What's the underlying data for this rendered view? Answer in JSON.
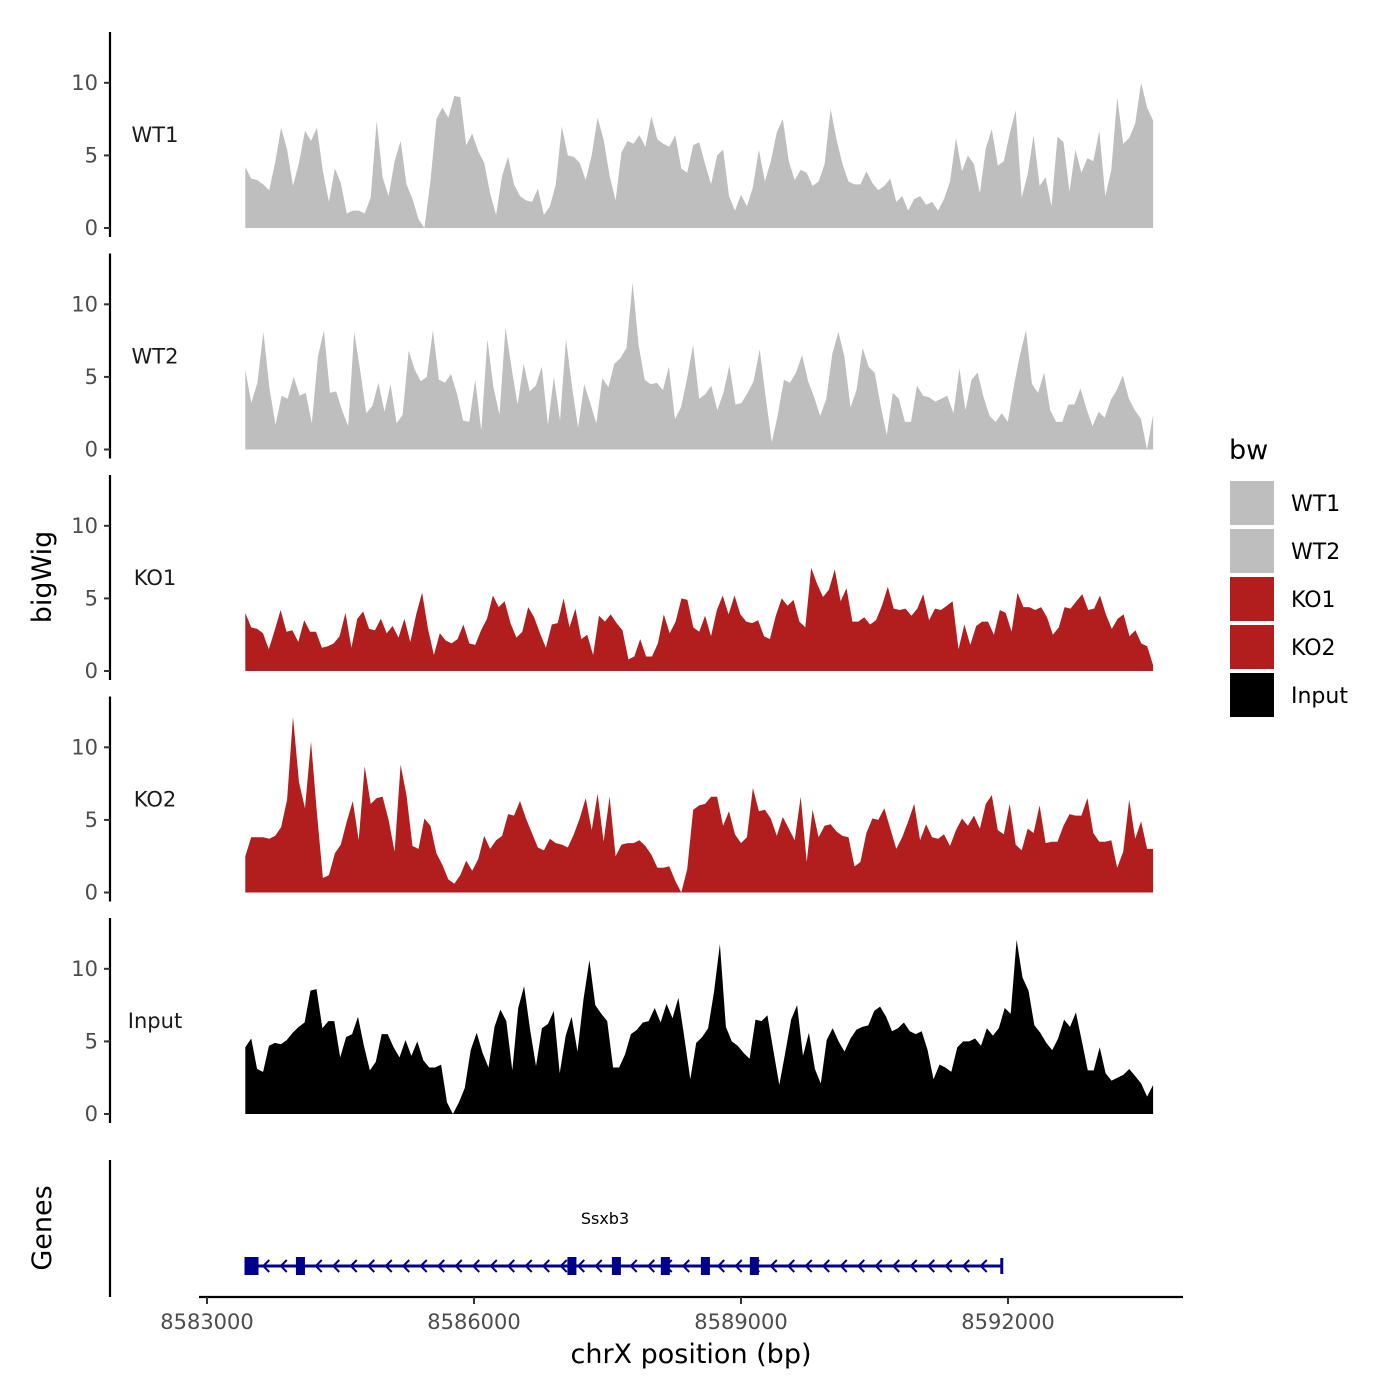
{
  "chart_data": {
    "type": "area",
    "genomic_range": [
      8583430,
      8593630
    ],
    "xlim": [
      8582900,
      8593950
    ],
    "ylim": [
      0,
      13.5
    ],
    "y_ticks": [
      0,
      5,
      10
    ],
    "y_tick_labels": [
      "0",
      "5",
      "10"
    ],
    "x_ticks": [
      8583000,
      8586000,
      8589000,
      8592000
    ],
    "x_tick_labels": [
      "8583000",
      "8586000",
      "8589000",
      "8592000"
    ],
    "xlabel": "chrX position (bp)",
    "ylabel": "bigWig",
    "genes_label": "Genes",
    "legend_title": "bw",
    "tracks": [
      {
        "name": "WT1",
        "color": "#bebebe",
        "values": [
          4.2,
          3.4,
          3.3,
          3.0,
          2.6,
          4.5,
          6.9,
          5.4,
          2.9,
          4.5,
          6.7,
          6.0,
          6.9,
          3.9,
          1.8,
          4.1,
          3.1,
          1.0,
          1.2,
          1.2,
          1.0,
          2.1,
          7.4,
          3.5,
          2.2,
          4.6,
          6.0,
          3.0,
          2.0,
          0.6,
          0.0,
          3.2,
          7.5,
          8.3,
          7.6,
          9.1,
          9.0,
          5.7,
          6.5,
          5.3,
          4.5,
          2.4,
          0.9,
          3.6,
          4.9,
          3.0,
          2.2,
          1.9,
          1.8,
          2.7,
          0.9,
          1.5,
          3.0,
          7.0,
          5.0,
          4.9,
          4.5,
          3.3,
          5.0,
          7.6,
          6.1,
          3.6,
          1.9,
          5.2,
          6.0,
          5.8,
          6.4,
          5.6,
          7.7,
          6.1,
          5.8,
          5.6,
          6.4,
          4.1,
          3.8,
          5.7,
          5.9,
          4.4,
          3.0,
          5.0,
          5.4,
          2.2,
          1.2,
          2.3,
          1.5,
          2.8,
          5.4,
          3.2,
          4.6,
          6.6,
          7.5,
          4.6,
          3.3,
          4.0,
          3.8,
          2.9,
          3.2,
          4.4,
          8.2,
          6.1,
          4.4,
          3.2,
          3.0,
          3.0,
          3.9,
          3.1,
          2.6,
          2.9,
          3.4,
          1.8,
          2.2,
          1.2,
          2.0,
          2.2,
          1.6,
          1.8,
          1.2,
          2.0,
          3.2,
          6.2,
          3.9,
          5.0,
          4.4,
          2.4,
          5.5,
          6.8,
          4.3,
          4.6,
          6.5,
          8.1,
          2.1,
          3.7,
          6.4,
          2.9,
          3.5,
          1.5,
          6.3,
          5.9,
          2.5,
          5.4,
          3.8,
          4.8,
          4.6,
          6.7,
          2.2,
          4.0,
          9.0,
          5.8,
          6.2,
          7.2,
          10.0,
          8.3,
          7.4
        ]
      },
      {
        "name": "WT2",
        "color": "#bebebe",
        "values": [
          5.5,
          3.2,
          4.6,
          8.1,
          4.2,
          1.7,
          3.7,
          3.5,
          5.0,
          3.7,
          3.9,
          1.8,
          6.4,
          8.2,
          3.9,
          4.0,
          2.7,
          1.6,
          8.1,
          5.4,
          2.5,
          3.0,
          4.6,
          2.6,
          4.5,
          1.8,
          2.4,
          6.8,
          5.5,
          4.7,
          5.0,
          8.2,
          4.8,
          4.6,
          5.2,
          3.8,
          2.0,
          1.9,
          4.8,
          1.3,
          7.6,
          4.3,
          2.4,
          8.4,
          5.6,
          3.1,
          5.9,
          4.0,
          4.4,
          5.7,
          1.7,
          5.0,
          2.0,
          7.6,
          4.3,
          1.5,
          4.5,
          3.2,
          1.8,
          4.9,
          4.3,
          5.9,
          6.3,
          7.0,
          11.5,
          7.2,
          4.8,
          4.5,
          4.6,
          4.1,
          5.7,
          2.1,
          2.9,
          4.9,
          7.2,
          3.5,
          3.8,
          4.4,
          2.7,
          3.9,
          5.8,
          3.1,
          3.2,
          3.9,
          4.7,
          6.9,
          3.6,
          0.5,
          2.4,
          4.8,
          4.6,
          5.3,
          6.5,
          4.7,
          3.6,
          2.3,
          3.5,
          6.6,
          8.1,
          6.4,
          2.9,
          4.1,
          7.0,
          5.7,
          5.3,
          3.0,
          1.0,
          3.9,
          3.5,
          1.9,
          1.9,
          4.4,
          3.7,
          3.6,
          3.3,
          3.5,
          3.7,
          2.5,
          5.6,
          2.7,
          4.8,
          5.3,
          3.6,
          2.3,
          1.9,
          2.5,
          1.9,
          4.4,
          6.5,
          8.2,
          4.5,
          3.9,
          5.3,
          2.7,
          1.9,
          1.9,
          3.1,
          3.1,
          4.2,
          2.8,
          1.6,
          2.6,
          2.2,
          3.4,
          4.1,
          5.1,
          3.5,
          2.7,
          2.1,
          0.0,
          2.4
        ]
      },
      {
        "name": "KO1",
        "color": "#b21e1e",
        "values": [
          4.0,
          3.0,
          2.9,
          2.6,
          1.5,
          2.8,
          4.2,
          2.7,
          2.8,
          2.0,
          3.5,
          2.7,
          2.7,
          1.6,
          1.7,
          1.9,
          2.4,
          4.0,
          1.6,
          3.6,
          4.1,
          2.9,
          2.8,
          3.6,
          2.6,
          3.1,
          2.3,
          3.6,
          2.0,
          3.9,
          5.4,
          2.9,
          1.1,
          2.6,
          2.1,
          1.9,
          2.2,
          3.2,
          1.9,
          1.8,
          2.8,
          3.6,
          5.2,
          4.4,
          4.8,
          3.3,
          2.3,
          2.7,
          4.4,
          3.7,
          2.6,
          1.6,
          3.2,
          3.3,
          5.0,
          3.0,
          4.3,
          2.2,
          2.5,
          1.1,
          3.8,
          3.4,
          3.9,
          3.3,
          2.8,
          0.8,
          1.0,
          2.2,
          1.0,
          1.0,
          1.9,
          3.9,
          2.6,
          3.4,
          5.0,
          4.9,
          3.0,
          2.7,
          3.8,
          2.4,
          4.2,
          5.2,
          3.9,
          5.2,
          3.9,
          3.4,
          3.3,
          3.5,
          2.4,
          2.2,
          3.8,
          5.0,
          4.5,
          4.9,
          3.4,
          3.0,
          7.1,
          6.0,
          5.1,
          5.6,
          7.0,
          4.8,
          5.7,
          3.4,
          3.4,
          3.7,
          3.2,
          3.5,
          4.5,
          5.8,
          4.3,
          4.2,
          4.3,
          3.8,
          4.3,
          5.3,
          3.5,
          4.3,
          4.2,
          4.5,
          4.8,
          1.5,
          3.2,
          1.8,
          3.1,
          3.4,
          3.4,
          2.5,
          4.2,
          4.0,
          2.7,
          5.4,
          4.4,
          4.4,
          4.2,
          4.4,
          3.7,
          2.5,
          3.0,
          4.4,
          4.3,
          4.8,
          5.3,
          4.2,
          4.3,
          5.2,
          3.9,
          2.9,
          3.6,
          3.9,
          2.4,
          2.8,
          1.9,
          1.7,
          0.4
        ]
      },
      {
        "name": "KO2",
        "color": "#b21e1e",
        "values": [
          2.5,
          3.8,
          3.8,
          3.8,
          3.7,
          3.9,
          4.5,
          6.4,
          12.1,
          7.6,
          5.8,
          10.4,
          5.5,
          1.0,
          1.2,
          2.7,
          3.3,
          4.9,
          6.3,
          3.6,
          8.7,
          6.1,
          6.5,
          6.6,
          5.0,
          2.8,
          8.8,
          6.7,
          3.2,
          3.0,
          5.1,
          4.6,
          2.7,
          1.9,
          0.9,
          0.6,
          1.2,
          2.2,
          1.5,
          2.3,
          3.9,
          3.0,
          3.6,
          3.9,
          5.4,
          5.3,
          6.3,
          5.1,
          4.1,
          3.1,
          2.9,
          3.7,
          3.4,
          3.3,
          3.1,
          4.0,
          5.1,
          6.5,
          4.3,
          6.8,
          3.5,
          6.6,
          2.5,
          3.3,
          3.4,
          3.4,
          3.6,
          3.2,
          2.6,
          1.7,
          1.7,
          1.8,
          0.8,
          0.0,
          1.6,
          5.7,
          6.0,
          6.1,
          6.6,
          6.6,
          4.6,
          5.6,
          4.0,
          3.4,
          3.8,
          7.2,
          5.6,
          5.7,
          5.1,
          3.9,
          5.2,
          4.4,
          3.6,
          6.6,
          2.1,
          5.7,
          3.8,
          4.6,
          4.7,
          4.2,
          3.9,
          3.8,
          1.8,
          2.1,
          4.1,
          5.1,
          5.0,
          5.8,
          4.4,
          3.0,
          3.8,
          4.9,
          6.1,
          3.6,
          4.7,
          3.8,
          3.7,
          4.0,
          3.2,
          4.3,
          5.1,
          4.6,
          5.3,
          4.4,
          6.1,
          6.7,
          4.3,
          4.0,
          6.1,
          3.3,
          2.9,
          4.4,
          4.1,
          6.0,
          3.4,
          3.5,
          3.5,
          4.6,
          5.4,
          5.3,
          5.3,
          6.5,
          4.1,
          3.5,
          3.5,
          3.6,
          1.7,
          2.8,
          6.4,
          3.7,
          4.9,
          3.0,
          3.0
        ]
      },
      {
        "name": "Input",
        "color": "#000000",
        "values": [
          4.6,
          5.2,
          3.1,
          2.9,
          4.7,
          4.9,
          4.8,
          5.1,
          5.6,
          6.0,
          6.3,
          8.5,
          8.6,
          5.9,
          6.4,
          6.4,
          3.9,
          5.3,
          5.5,
          6.7,
          4.7,
          3.0,
          3.6,
          5.5,
          5.5,
          4.6,
          3.9,
          5.1,
          4.0,
          5.0,
          3.7,
          3.2,
          3.2,
          3.4,
          0.8,
          0.0,
          0.8,
          1.8,
          4.4,
          5.6,
          4.2,
          3.2,
          6.0,
          7.2,
          6.4,
          3.0,
          7.3,
          8.8,
          5.8,
          3.3,
          5.9,
          6.2,
          7.1,
          2.8,
          5.4,
          6.7,
          4.3,
          7.9,
          10.6,
          7.5,
          6.9,
          6.4,
          3.2,
          3.2,
          4.1,
          5.5,
          5.8,
          6.3,
          6.4,
          7.3,
          6.3,
          7.6,
          6.6,
          8.0,
          5.3,
          2.4,
          4.9,
          5.3,
          5.9,
          8.4,
          11.7,
          6.0,
          5.0,
          4.7,
          4.2,
          3.8,
          6.5,
          6.4,
          6.8,
          4.4,
          2.0,
          4.2,
          6.5,
          7.5,
          4.0,
          5.6,
          3.1,
          2.1,
          5.1,
          5.9,
          5.0,
          4.3,
          5.2,
          5.8,
          6.0,
          6.1,
          7.1,
          7.4,
          6.7,
          5.7,
          5.9,
          6.3,
          5.7,
          5.5,
          5.7,
          4.4,
          2.4,
          3.4,
          3.2,
          2.9,
          4.6,
          5.0,
          5.0,
          5.2,
          4.7,
          5.9,
          5.4,
          5.9,
          7.3,
          6.9,
          12.0,
          9.4,
          8.5,
          6.1,
          5.6,
          4.9,
          4.4,
          5.2,
          6.5,
          6.0,
          7.0,
          5.0,
          3.0,
          3.0,
          4.6,
          2.8,
          2.3,
          2.5,
          2.7,
          3.1,
          2.6,
          2.1,
          1.2,
          2.0
        ]
      }
    ],
    "gene": {
      "name": "Ssxb3",
      "start": 8583430,
      "end": 8591930,
      "strand": "-",
      "exons": [
        8583500,
        8584050,
        8587100,
        8587600,
        8588150,
        8588600,
        8589150
      ],
      "color": "#00008b"
    },
    "legend": [
      {
        "label": "WT1",
        "color": "#bebebe"
      },
      {
        "label": "WT2",
        "color": "#bebebe"
      },
      {
        "label": "KO1",
        "color": "#b21e1e"
      },
      {
        "label": "KO2",
        "color": "#b21e1e"
      },
      {
        "label": "Input",
        "color": "#000000"
      }
    ]
  }
}
